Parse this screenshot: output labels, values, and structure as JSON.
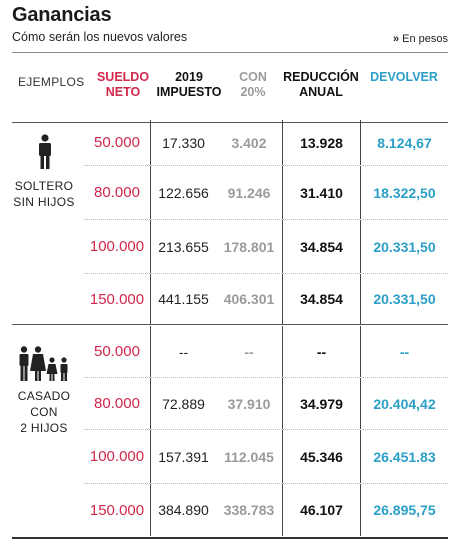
{
  "header": {
    "title": "Ganancias",
    "subtitle": "Cómo serán los nuevos valores",
    "unit_arrow": "»",
    "unit": "En pesos"
  },
  "columns": {
    "examples": "EJEMPLOS",
    "sueldo_1": "SUELDO",
    "sueldo_2": "NETO",
    "impuesto_1": "2019",
    "impuesto_2": "IMPUESTO",
    "con_1": "CON",
    "con_2": "20%",
    "reduccion_1": "REDUCCIÓN",
    "reduccion_2": "ANUAL",
    "devolver": "DEVOLVER"
  },
  "colors": {
    "sueldo": "#d1274b",
    "con20": "#9b9b9b",
    "devolver": "#2b9fc7"
  },
  "groups": [
    {
      "label_1": "SOLTERO",
      "label_2": "SIN HIJOS",
      "icon": "single-person-icon",
      "rows": [
        {
          "sueldo": "50.000",
          "impuesto": "17.330",
          "con20": "3.402",
          "reduccion": "13.928",
          "devolver": "8.124,67"
        },
        {
          "sueldo": "80.000",
          "impuesto": "122.656",
          "con20": "91.246",
          "reduccion": "31.410",
          "devolver": "18.322,50"
        },
        {
          "sueldo": "100.000",
          "impuesto": "213.655",
          "con20": "178.801",
          "reduccion": "34.854",
          "devolver": "20.331,50"
        },
        {
          "sueldo": "150.000",
          "impuesto": "441.155",
          "con20": "406.301",
          "reduccion": "34.854",
          "devolver": "20.331,50"
        }
      ]
    },
    {
      "label_1": "CASADO",
      "label_2": "CON",
      "label_3": "2 HIJOS",
      "icon": "family-icon",
      "rows": [
        {
          "sueldo": "50.000",
          "impuesto": "--",
          "con20": "--",
          "reduccion": "--",
          "devolver": "--"
        },
        {
          "sueldo": "80.000",
          "impuesto": "72.889",
          "con20": "37.910",
          "reduccion": "34.979",
          "devolver": "20.404,42"
        },
        {
          "sueldo": "100.000",
          "impuesto": "157.391",
          "con20": "112.045",
          "reduccion": "45.346",
          "devolver": "26.451.83"
        },
        {
          "sueldo": "150.000",
          "impuesto": "384.890",
          "con20": "338.783",
          "reduccion": "46.107",
          "devolver": "26.895,75"
        }
      ]
    }
  ]
}
